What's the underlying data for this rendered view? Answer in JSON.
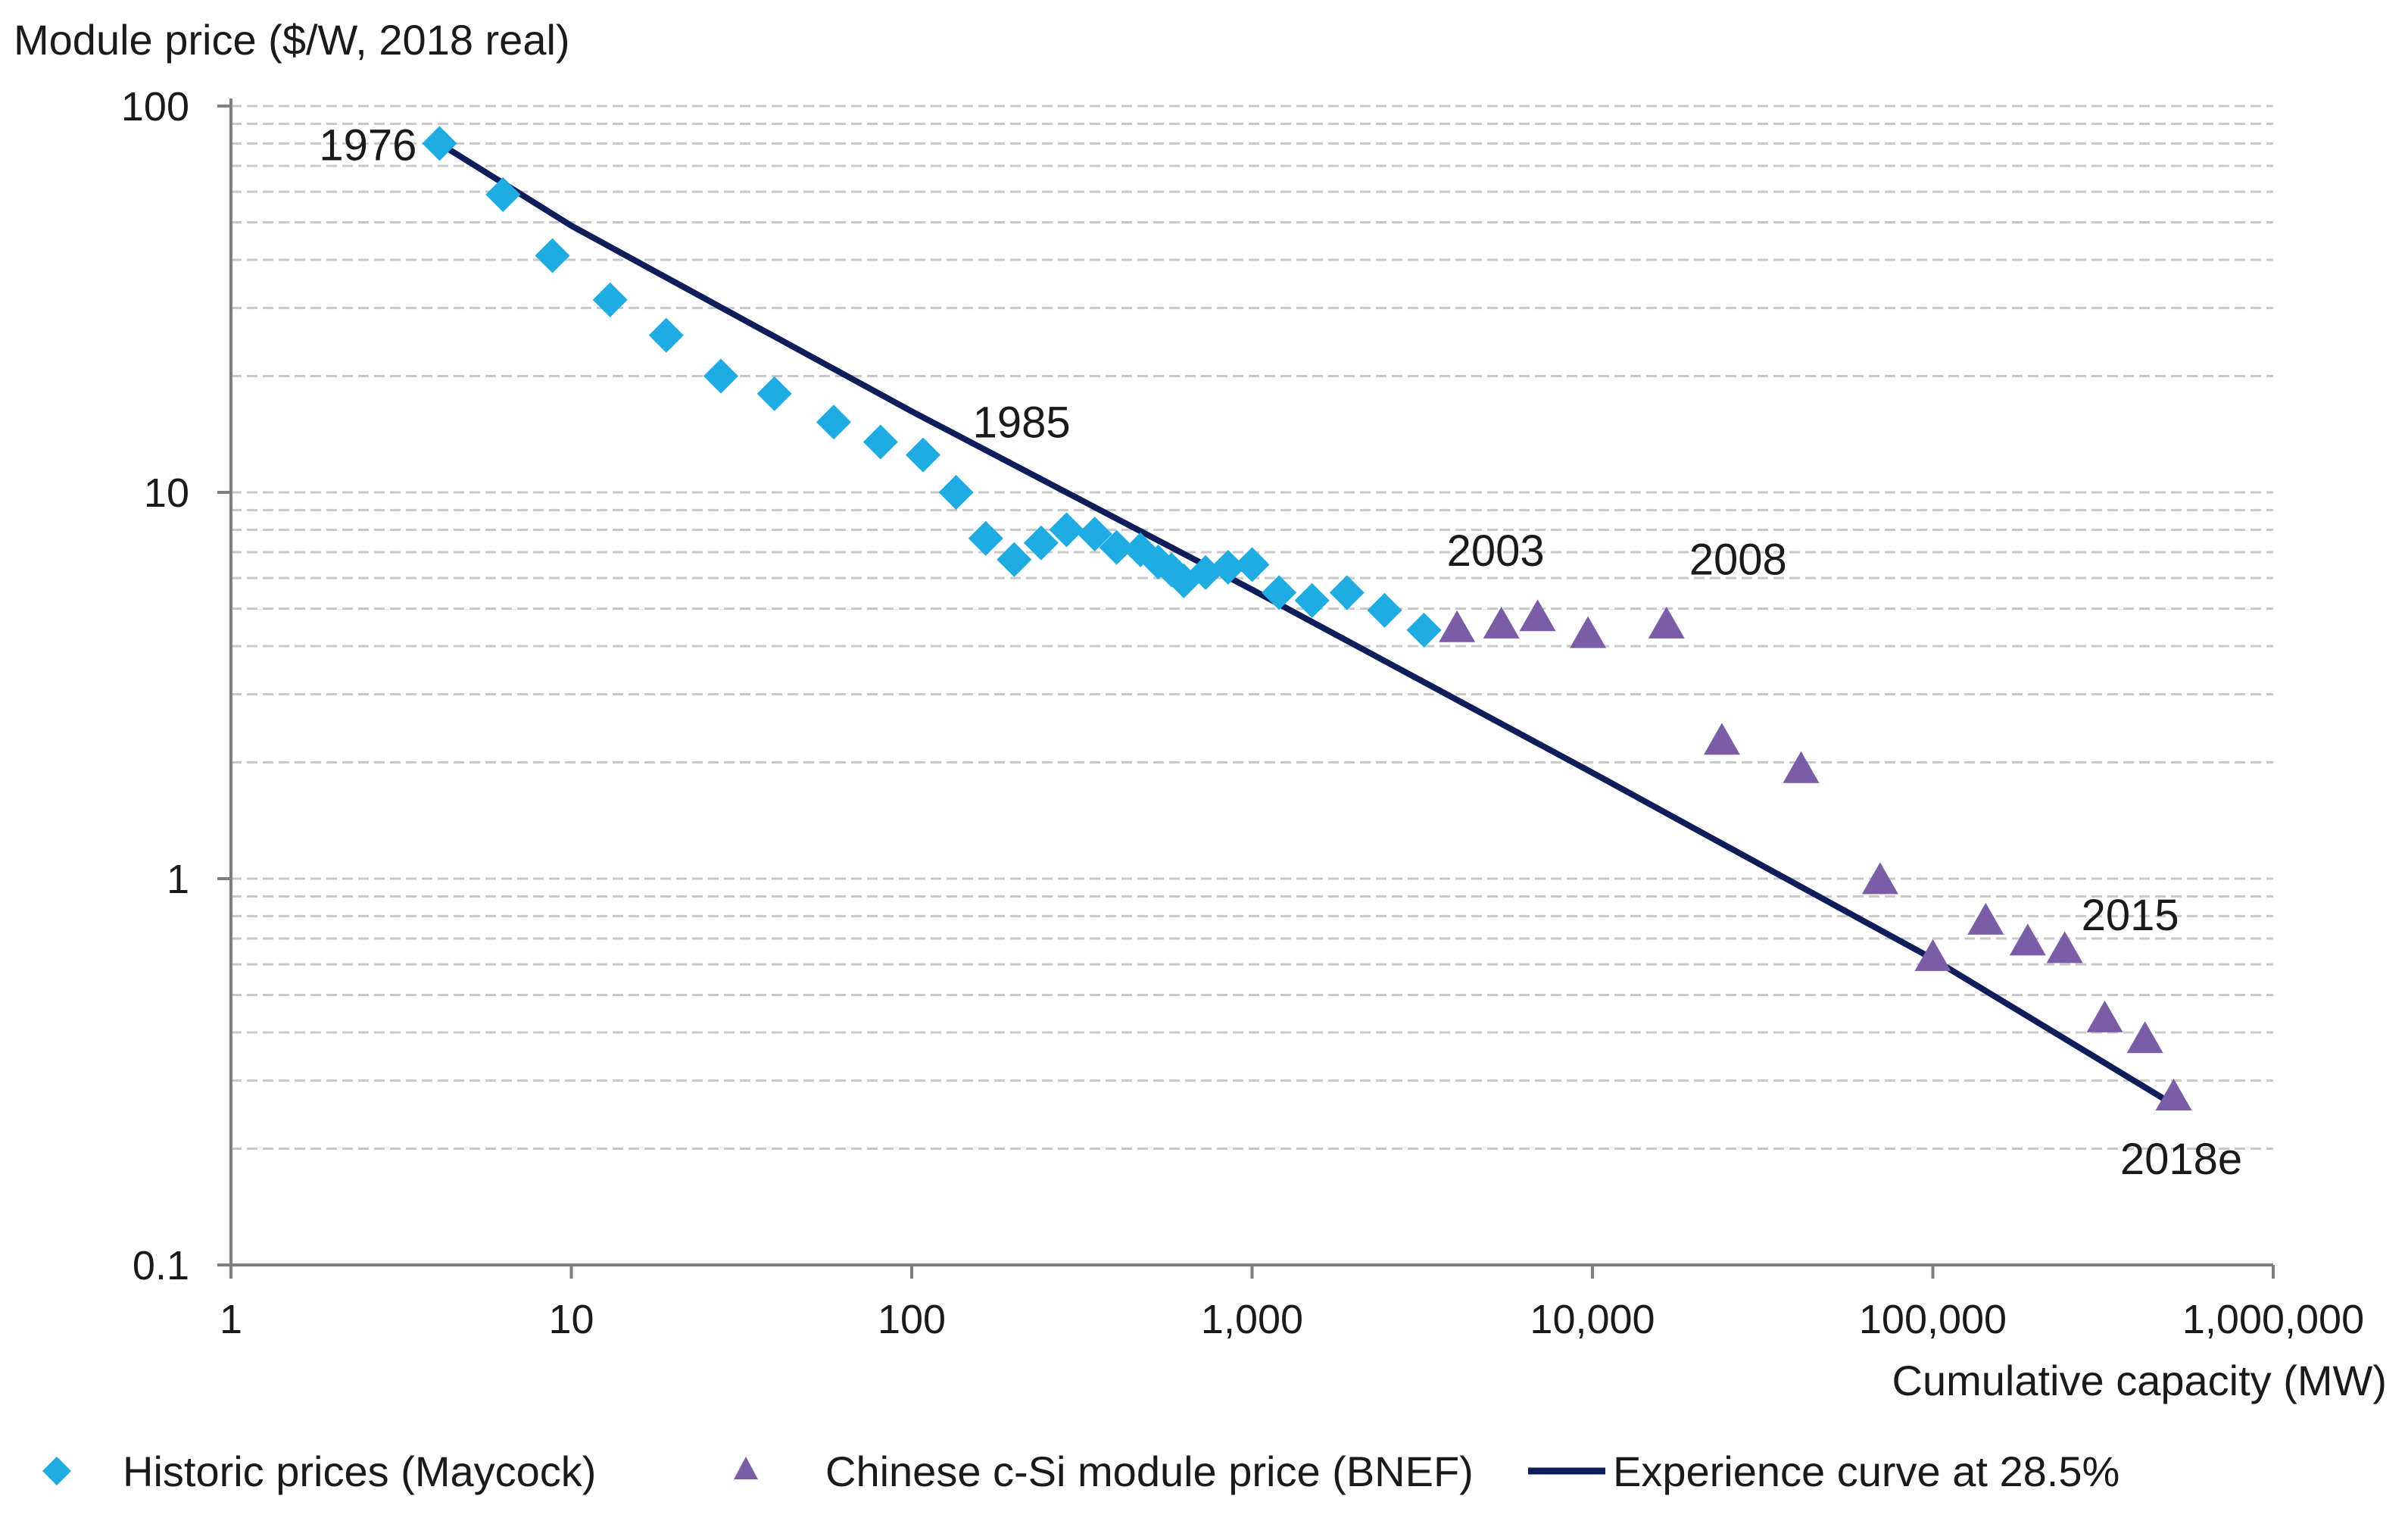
{
  "chart_data": {
    "type": "scatter",
    "title": "",
    "ylabel": "Module price ($/W, 2018 real)",
    "xlabel": "Cumulative capacity (MW)",
    "x_scale": "log",
    "y_scale": "log",
    "xlim": [
      1,
      1000000
    ],
    "ylim": [
      0.1,
      100
    ],
    "grid": "horizontal minor and major, dashed",
    "x_ticks": [
      {
        "value": 1,
        "label": "1"
      },
      {
        "value": 10,
        "label": "10"
      },
      {
        "value": 100,
        "label": "100"
      },
      {
        "value": 1000,
        "label": "1,000"
      },
      {
        "value": 10000,
        "label": "10,000"
      },
      {
        "value": 100000,
        "label": "100,000"
      },
      {
        "value": 1000000,
        "label": "1,000,000"
      }
    ],
    "y_ticks": [
      {
        "value": 0.1,
        "label": "0.1"
      },
      {
        "value": 1,
        "label": "1"
      },
      {
        "value": 10,
        "label": "10"
      },
      {
        "value": 100,
        "label": "100"
      }
    ],
    "legend_position": "bottom",
    "series": [
      {
        "name": "Historic prices (Maycock)",
        "marker": "diamond",
        "color": "#1EACE3",
        "points": [
          {
            "x": 4.1,
            "y": 80
          },
          {
            "x": 6.3,
            "y": 59
          },
          {
            "x": 8.8,
            "y": 41
          },
          {
            "x": 13,
            "y": 31.5
          },
          {
            "x": 19,
            "y": 25.5
          },
          {
            "x": 27.5,
            "y": 20
          },
          {
            "x": 39.5,
            "y": 18
          },
          {
            "x": 59,
            "y": 15.2
          },
          {
            "x": 81,
            "y": 13.5
          },
          {
            "x": 108,
            "y": 12.5
          },
          {
            "x": 135,
            "y": 10
          },
          {
            "x": 165,
            "y": 7.6
          },
          {
            "x": 200,
            "y": 6.7
          },
          {
            "x": 240,
            "y": 7.4
          },
          {
            "x": 285,
            "y": 8
          },
          {
            "x": 345,
            "y": 7.8
          },
          {
            "x": 400,
            "y": 7.2
          },
          {
            "x": 470,
            "y": 7.1
          },
          {
            "x": 530,
            "y": 6.6
          },
          {
            "x": 580,
            "y": 6.3
          },
          {
            "x": 630,
            "y": 5.9
          },
          {
            "x": 730,
            "y": 6.2
          },
          {
            "x": 850,
            "y": 6.4
          },
          {
            "x": 1000,
            "y": 6.5
          },
          {
            "x": 1200,
            "y": 5.5
          },
          {
            "x": 1500,
            "y": 5.25
          },
          {
            "x": 1900,
            "y": 5.5
          },
          {
            "x": 2450,
            "y": 4.95
          },
          {
            "x": 3200,
            "y": 4.4
          }
        ]
      },
      {
        "name": "Chinese c-Si module price (BNEF)",
        "marker": "triangle",
        "color": "#7B5DA7",
        "points": [
          {
            "x": 4000,
            "y": 4.4
          },
          {
            "x": 5400,
            "y": 4.5
          },
          {
            "x": 6900,
            "y": 4.7
          },
          {
            "x": 9700,
            "y": 4.25
          },
          {
            "x": 16500,
            "y": 4.5
          },
          {
            "x": 24000,
            "y": 2.25
          },
          {
            "x": 41000,
            "y": 1.9
          },
          {
            "x": 70000,
            "y": 0.98
          },
          {
            "x": 100000,
            "y": 0.62
          },
          {
            "x": 143000,
            "y": 0.77
          },
          {
            "x": 190000,
            "y": 0.68
          },
          {
            "x": 244000,
            "y": 0.65
          },
          {
            "x": 320000,
            "y": 0.43
          },
          {
            "x": 420000,
            "y": 0.38
          },
          {
            "x": 510000,
            "y": 0.27
          }
        ]
      },
      {
        "name": "Experience curve at 28.5%",
        "marker": "line",
        "color": "#0F1E5A",
        "points": [
          {
            "x": 4.1,
            "y": 80
          },
          {
            "x": 10,
            "y": 49
          },
          {
            "x": 100,
            "y": 16.2
          },
          {
            "x": 1000,
            "y": 5.6
          },
          {
            "x": 10000,
            "y": 1.88
          },
          {
            "x": 100000,
            "y": 0.62
          },
          {
            "x": 510000,
            "y": 0.26
          }
        ]
      }
    ],
    "annotations": [
      {
        "text": "1976",
        "x": 4.1,
        "y": 80,
        "anchor": "left"
      },
      {
        "text": "1985",
        "x": 135,
        "y": 14.5,
        "anchor": "right"
      },
      {
        "text": "2003",
        "x": 3200,
        "y": 5.9,
        "anchor": "above"
      },
      {
        "text": "2008",
        "x": 16500,
        "y": 5.6,
        "anchor": "above"
      },
      {
        "text": "2015",
        "x": 244000,
        "y": 0.77,
        "anchor": "right"
      },
      {
        "text": "2018e",
        "x": 510000,
        "y": 0.27,
        "anchor": "below"
      }
    ]
  }
}
